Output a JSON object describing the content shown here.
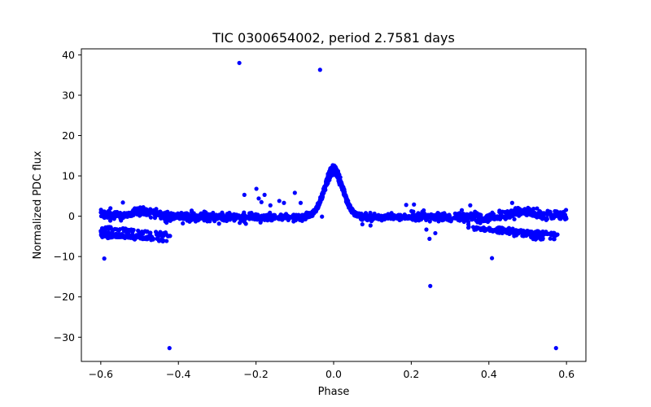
{
  "chart_data": {
    "type": "scatter",
    "title": "TIC 0300654002, period 2.7581 days",
    "xlabel": "Phase",
    "ylabel": "Normalized PDC flux",
    "xlim": [
      -0.65,
      0.65
    ],
    "ylim": [
      -36.0,
      41.5
    ],
    "xticks": [
      -0.6,
      -0.4,
      -0.2,
      0.0,
      0.2,
      0.4,
      0.6
    ],
    "xtick_labels": [
      "−0.6",
      "−0.4",
      "−0.2",
      "0.0",
      "0.2",
      "0.4",
      "0.6"
    ],
    "yticks": [
      -30,
      -20,
      -10,
      0,
      10,
      20,
      30,
      40
    ],
    "ytick_labels": [
      "−30",
      "−20",
      "−10",
      "0",
      "10",
      "20",
      "30",
      "40"
    ],
    "grid": false,
    "marker_color": "#0000ff",
    "series": [
      {
        "name": "flux",
        "outliers": [
          {
            "x": -0.243,
            "y": 38.0
          },
          {
            "x": -0.035,
            "y": 36.3
          },
          {
            "x": -0.591,
            "y": -10.5
          },
          {
            "x": -0.423,
            "y": -32.7
          },
          {
            "x": 0.249,
            "y": -17.3
          },
          {
            "x": 0.408,
            "y": -10.4
          },
          {
            "x": 0.573,
            "y": -32.7
          },
          {
            "x": -0.23,
            "y": 5.3
          },
          {
            "x": -0.199,
            "y": 6.8
          },
          {
            "x": -0.193,
            "y": 4.4
          },
          {
            "x": -0.178,
            "y": 5.3
          },
          {
            "x": -0.186,
            "y": 3.5
          },
          {
            "x": -0.163,
            "y": 2.7
          },
          {
            "x": -0.14,
            "y": 3.8
          },
          {
            "x": -0.128,
            "y": 3.3
          },
          {
            "x": -0.1,
            "y": 5.8
          },
          {
            "x": -0.085,
            "y": 3.3
          },
          {
            "x": -0.543,
            "y": 3.4
          },
          {
            "x": 0.187,
            "y": 2.8
          },
          {
            "x": 0.207,
            "y": 2.9
          },
          {
            "x": 0.352,
            "y": 2.7
          },
          {
            "x": 0.46,
            "y": 3.3
          },
          {
            "x": 0.239,
            "y": -3.3
          },
          {
            "x": 0.262,
            "y": -4.2
          },
          {
            "x": 0.247,
            "y": -5.6
          },
          {
            "x": -0.03,
            "y": -0.1
          },
          {
            "x": 0.074,
            "y": -2.0
          },
          {
            "x": 0.095,
            "y": -2.3
          }
        ]
      }
    ]
  }
}
